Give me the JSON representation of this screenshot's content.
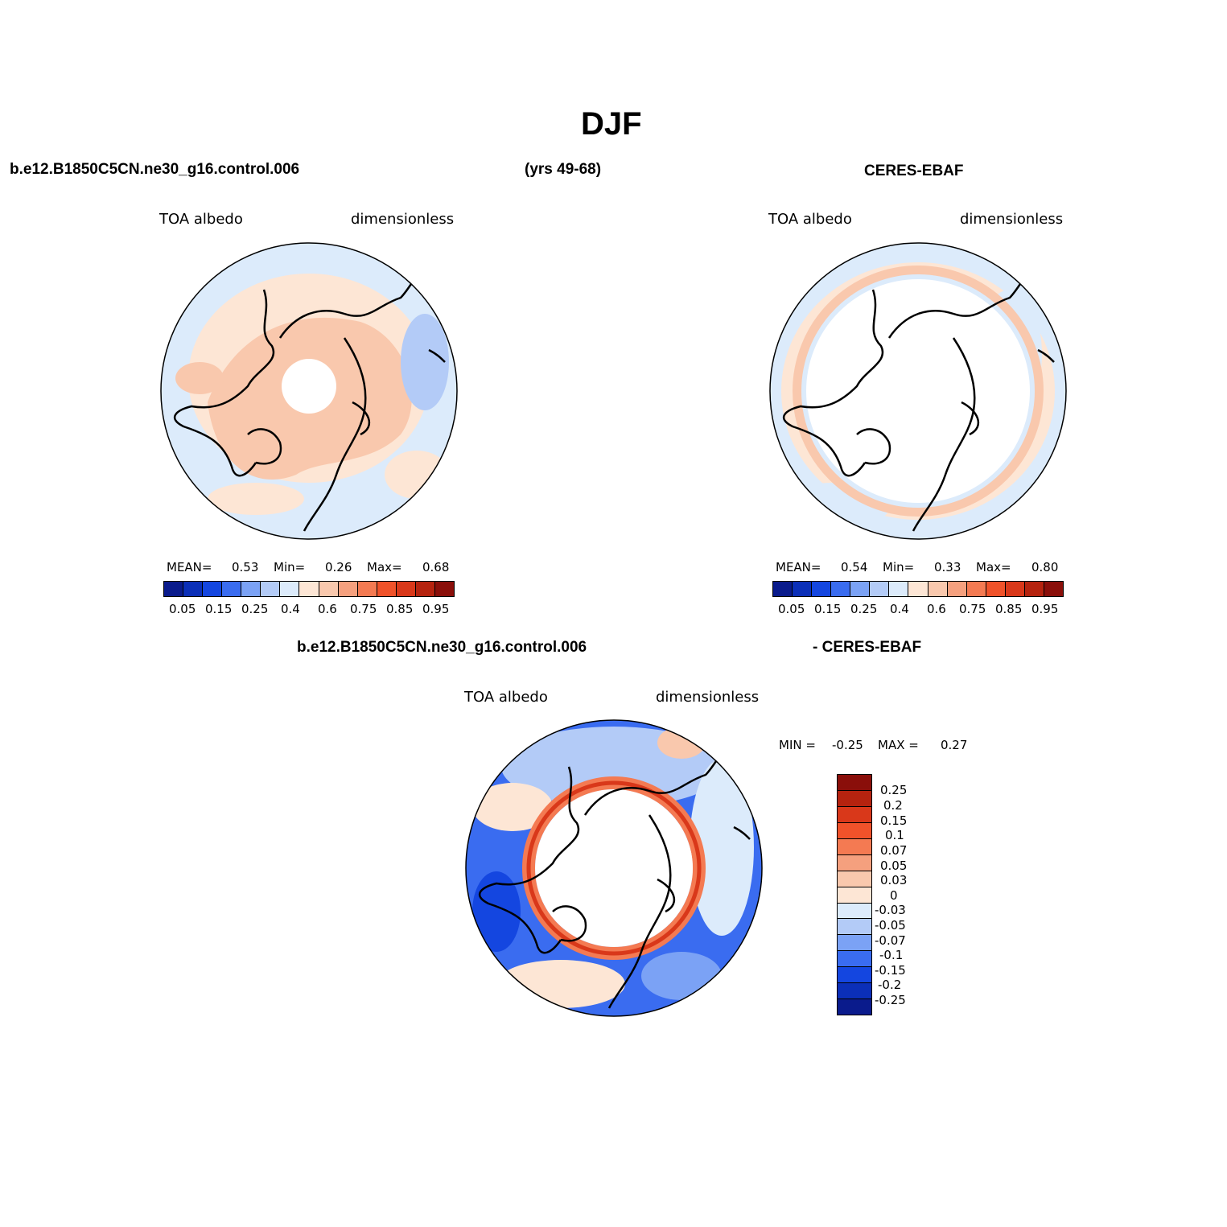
{
  "title": "DJF",
  "header": {
    "case_name": "b.e12.B1850C5CN.ne30_g16.control.006",
    "years": "(yrs 49-68)",
    "obs_name": "CERES-EBAF"
  },
  "diff_header": {
    "case_name": "b.e12.B1850C5CN.ne30_g16.control.006",
    "obs_name": "- CERES-EBAF"
  },
  "panels": {
    "model": {
      "variable": "TOA albedo",
      "units": "dimensionless",
      "mean_label": "MEAN=",
      "mean": "0.53",
      "min_label": "Min=",
      "min": "0.26",
      "max_label": "Max=",
      "max": "0.68"
    },
    "obs": {
      "variable": "TOA albedo",
      "units": "dimensionless",
      "mean_label": "MEAN=",
      "mean": "0.54",
      "min_label": "Min=",
      "min": "0.33",
      "max_label": "Max=",
      "max": "0.80"
    },
    "diff": {
      "variable": "TOA albedo",
      "units": "dimensionless",
      "min_label": "MIN =",
      "min": "-0.25",
      "max_label": "MAX =",
      "max": "0.27"
    }
  },
  "colorbar_abs": {
    "colors": [
      "#0a1b8c",
      "#0b2fb8",
      "#1446e0",
      "#3a6cf0",
      "#7ba2f5",
      "#b3cbf7",
      "#dcebfb",
      "#fde6d5",
      "#f9c8ad",
      "#f5a07e",
      "#f47a52",
      "#f0522a",
      "#d9381a",
      "#b5230f",
      "#8a0f0a"
    ],
    "labels": [
      "0.05",
      "0.15",
      "0.25",
      "0.4",
      "0.6",
      "0.75",
      "0.85",
      "0.95"
    ]
  },
  "colorbar_diff": {
    "colors": [
      "#8a0f0a",
      "#b5230f",
      "#d9381a",
      "#f0522a",
      "#f47a52",
      "#f5a07e",
      "#f9c8ad",
      "#fde6d5",
      "#dcebfb",
      "#b3cbf7",
      "#7ba2f5",
      "#3a6cf0",
      "#1446e0",
      "#0b2fb8",
      "#0a1b8c"
    ],
    "labels": [
      "0.25",
      "0.2",
      "0.15",
      "0.1",
      "0.07",
      "0.05",
      "0.03",
      "0",
      "-0.03",
      "-0.05",
      "-0.07",
      "-0.1",
      "-0.15",
      "-0.2",
      "-0.25"
    ]
  }
}
